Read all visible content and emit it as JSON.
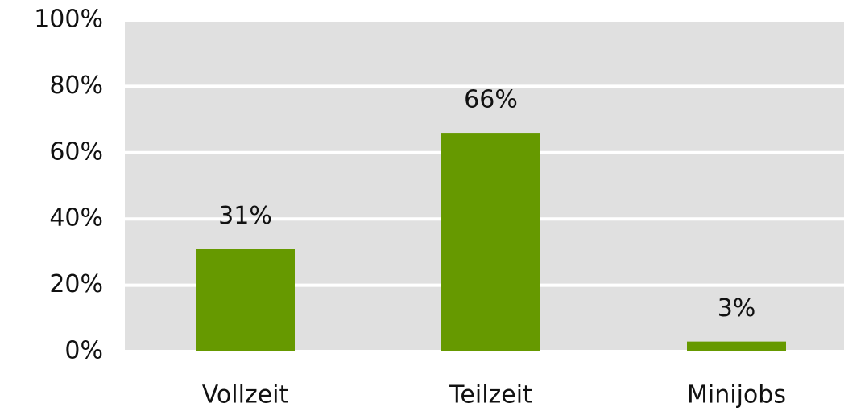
{
  "chart_data": {
    "type": "bar",
    "categories": [
      "Vollzeit",
      "Teilzeit",
      "Minijobs"
    ],
    "values": [
      31,
      66,
      3
    ],
    "value_labels": [
      "31%",
      "66%",
      "3%"
    ],
    "color": "#669900",
    "ylim": [
      0,
      100
    ],
    "yticks": [
      {
        "value": 0,
        "label": "0%"
      },
      {
        "value": 20,
        "label": "20%"
      },
      {
        "value": 40,
        "label": "40%"
      },
      {
        "value": 60,
        "label": "60%"
      },
      {
        "value": 80,
        "label": "80%"
      },
      {
        "value": 100,
        "label": "100%"
      }
    ],
    "grid": true
  }
}
